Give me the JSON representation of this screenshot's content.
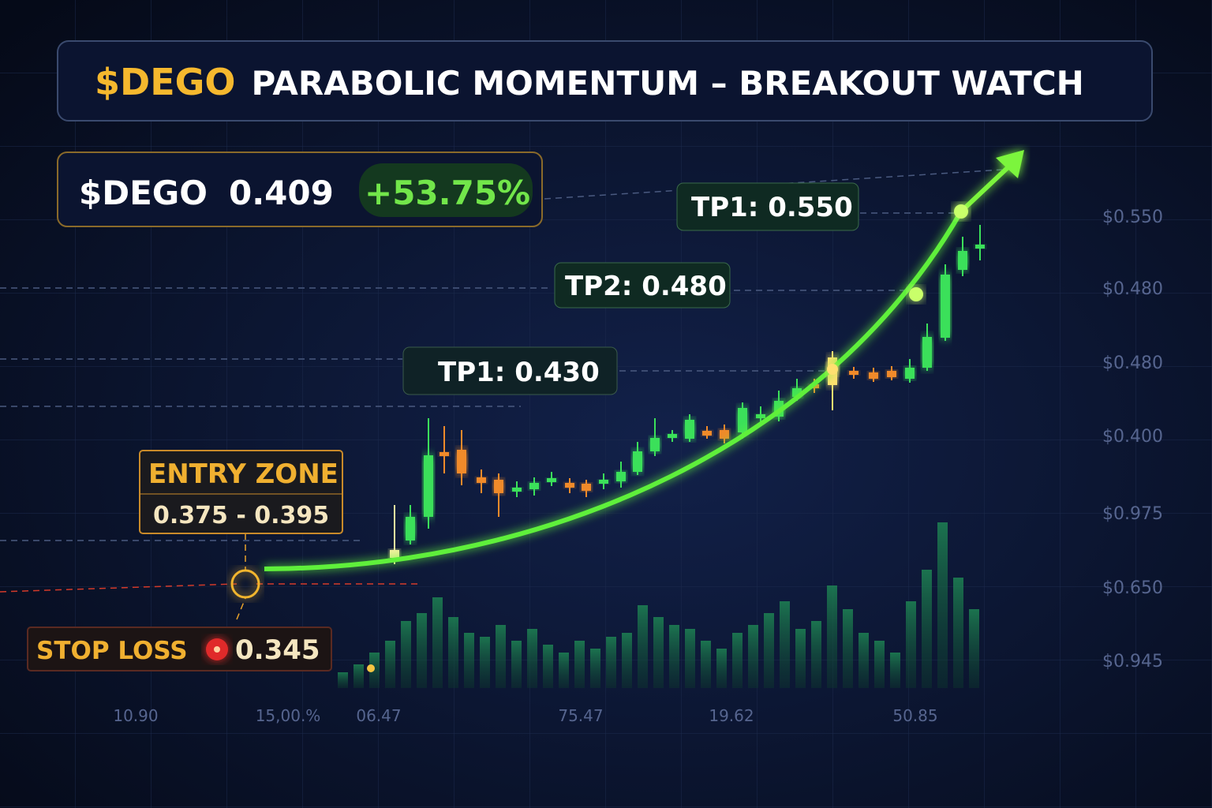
{
  "header": {
    "ticker": "$DEGO",
    "title": "PARABOLIC MOMENTUM – BREAKOUT WATCH"
  },
  "price_badge": {
    "ticker": "$DEGO",
    "price": "0.409",
    "change": "+53.75%"
  },
  "targets": [
    {
      "label": "TP1: 0.550"
    },
    {
      "label": "TP2: 0.480"
    },
    {
      "label": "TP1: 0.430"
    }
  ],
  "entry": {
    "label": "ENTRY ZONE",
    "range": "0.375 - 0.395"
  },
  "stop": {
    "label": "STOP LOSS",
    "value": "0.345"
  },
  "y_axis": [
    "$0.550",
    "$0.480",
    "$0.480",
    "$0.400",
    "$0.975",
    "$0.650",
    "$0.945"
  ],
  "x_axis": [
    "10.90",
    "15,00.%",
    "06.47",
    "75.47",
    "19.62",
    "50.85"
  ]
}
